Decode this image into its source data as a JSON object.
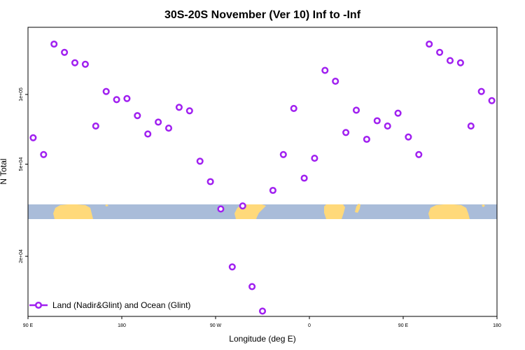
{
  "chart_data": {
    "type": "scatter",
    "title": "30S-20S November (Ver 10)   Inf to -Inf",
    "xlabel": "Longitude (deg E)",
    "ylabel": "N Total",
    "xlim": [
      90,
      540
    ],
    "ylim_log": [
      11000,
      195000
    ],
    "y_scale": "log",
    "x_ticks": [
      {
        "value": 90,
        "label": "90 E"
      },
      {
        "value": 180,
        "label": "180"
      },
      {
        "value": 270,
        "label": "90 W"
      },
      {
        "value": 360,
        "label": "0"
      },
      {
        "value": 450,
        "label": "90 E"
      },
      {
        "value": 540,
        "label": "180"
      }
    ],
    "y_ticks": [
      {
        "value": 20000,
        "label": "2e+04"
      },
      {
        "value": 50000,
        "label": "5e+04"
      },
      {
        "value": 100000,
        "label": "1e+05"
      }
    ],
    "grid": false,
    "legend": {
      "position": "bottom-left",
      "entries": [
        "Land (Nadir&Glint) and Ocean (Glint)"
      ]
    },
    "series": [
      {
        "name": "Land (Nadir&Glint) and Ocean (Glint)",
        "color": "#a020f0",
        "points": [
          [
            95,
            65000
          ],
          [
            105,
            55000
          ],
          [
            115,
            165000
          ],
          [
            125,
            152000
          ],
          [
            135,
            137000
          ],
          [
            145,
            135000
          ],
          [
            155,
            73000
          ],
          [
            165,
            103000
          ],
          [
            175,
            95000
          ],
          [
            185,
            96000
          ],
          [
            195,
            81000
          ],
          [
            205,
            67500
          ],
          [
            215,
            76000
          ],
          [
            225,
            71500
          ],
          [
            235,
            88000
          ],
          [
            245,
            85000
          ],
          [
            255,
            51500
          ],
          [
            265,
            42000
          ],
          [
            275,
            32000
          ],
          [
            286,
            18000
          ],
          [
            296,
            33000
          ],
          [
            305,
            14800
          ],
          [
            315,
            11600
          ],
          [
            325,
            38500
          ],
          [
            335,
            55000
          ],
          [
            345,
            87000
          ],
          [
            355,
            43500
          ],
          [
            365,
            53000
          ],
          [
            375,
            127000
          ],
          [
            385,
            114000
          ],
          [
            395,
            68500
          ],
          [
            405,
            85500
          ],
          [
            415,
            64000
          ],
          [
            425,
            77000
          ],
          [
            435,
            73000
          ],
          [
            445,
            83000
          ],
          [
            455,
            65500
          ],
          [
            465,
            55000
          ],
          [
            475,
            165000
          ],
          [
            485,
            152000
          ],
          [
            495,
            140000
          ],
          [
            505,
            137000
          ],
          [
            515,
            73000
          ],
          [
            525,
            103000
          ],
          [
            535,
            94000
          ]
        ]
      }
    ]
  }
}
